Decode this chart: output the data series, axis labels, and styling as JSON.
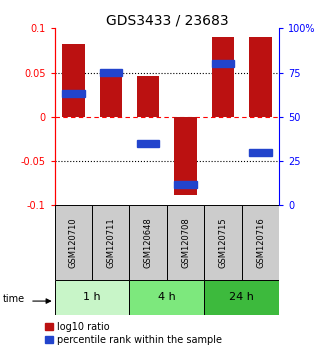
{
  "title": "GDS3433 / 23683",
  "samples": [
    "GSM120710",
    "GSM120711",
    "GSM120648",
    "GSM120708",
    "GSM120715",
    "GSM120716"
  ],
  "groups": [
    {
      "label": "1 h",
      "indices": [
        0,
        1
      ],
      "color": "#c8f5c8"
    },
    {
      "label": "4 h",
      "indices": [
        2,
        3
      ],
      "color": "#7de87d"
    },
    {
      "label": "24 h",
      "indices": [
        4,
        5
      ],
      "color": "#3dba3d"
    }
  ],
  "log10_ratio": [
    0.082,
    0.05,
    0.046,
    -0.088,
    0.09,
    0.09
  ],
  "percentile_rank": [
    0.63,
    0.75,
    0.35,
    0.12,
    0.8,
    0.3
  ],
  "ylim_left": [
    -0.1,
    0.1
  ],
  "ylim_right": [
    0,
    100
  ],
  "bar_width": 0.6,
  "bar_color": "#bb1111",
  "dot_color": "#2244cc",
  "yticks_left": [
    -0.1,
    -0.05,
    0.0,
    0.05,
    0.1
  ],
  "yticks_right": [
    0,
    25,
    50,
    75,
    100
  ],
  "ytick_labels_left": [
    "-0.1",
    "-0.05",
    "0",
    "0.05",
    "0.1"
  ],
  "ytick_labels_right": [
    "0",
    "25",
    "50",
    "75",
    "100%"
  ],
  "hlines": [
    0.05,
    0.0,
    -0.05
  ],
  "hline_styles": [
    "dotted",
    "dashed_red",
    "dotted"
  ],
  "bg_color": "#ffffff",
  "sample_box_color": "#cccccc",
  "title_fontsize": 10,
  "tick_fontsize": 7,
  "legend_fontsize": 7,
  "sample_fontsize": 6,
  "group_fontsize": 8
}
